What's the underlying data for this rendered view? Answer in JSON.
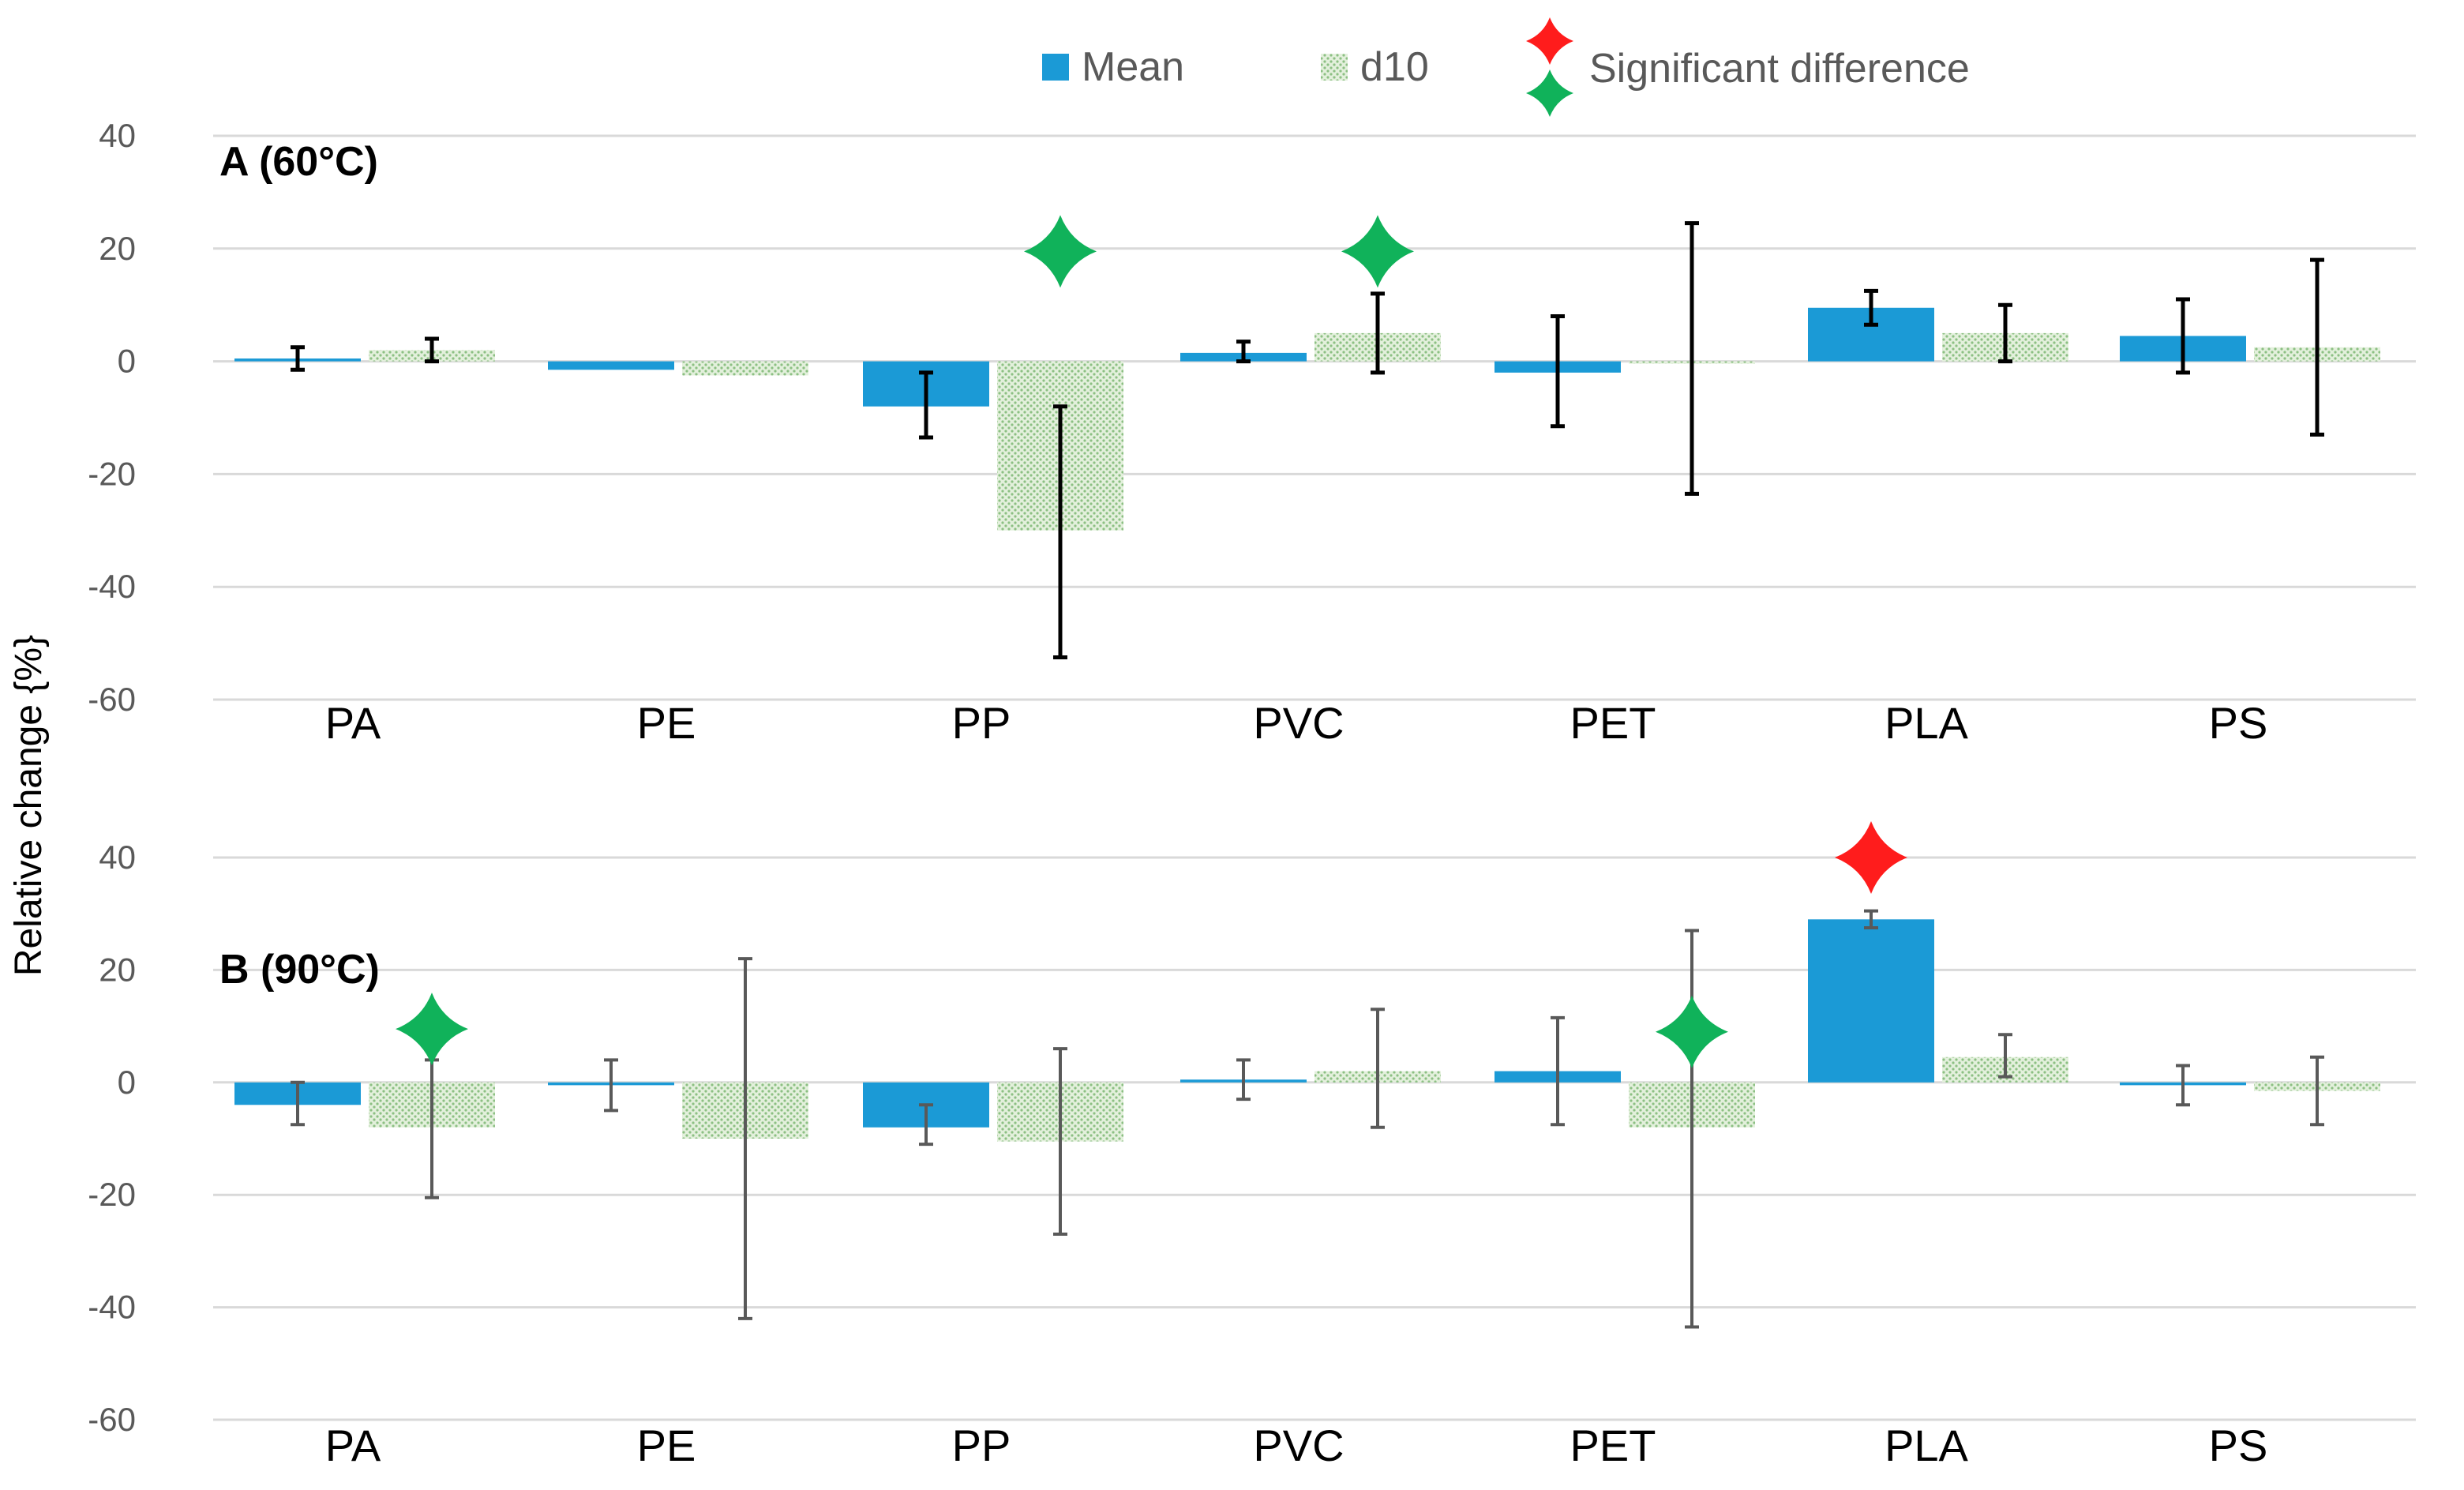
{
  "chart_data": {
    "type": "bar",
    "ylabel": "Relative change {%}",
    "legend": {
      "placement": "top-center",
      "items": [
        {
          "name": "Mean",
          "kind": "bar-solid",
          "color": "#1b9ad6"
        },
        {
          "name": "d10",
          "kind": "bar-hatched",
          "color": "#9bc98f"
        },
        {
          "name": "Significant difference",
          "kind": "star-pair",
          "colors": [
            "#ff1c1c",
            "#10b25a"
          ]
        }
      ]
    },
    "colors": {
      "mean": "#1b9ad6",
      "d10_fill": "#e3f0dc",
      "d10_dot": "#8cc083",
      "error_a": "#000000",
      "error_b": "#595959",
      "star_red": "#ff1c1c",
      "star_green": "#10b25a"
    },
    "panels": [
      {
        "title": "A (60°C)",
        "categories": [
          "PA",
          "PE",
          "PP",
          "PVC",
          "PET",
          "PLA",
          "PS"
        ],
        "ylim": [
          -60,
          40
        ],
        "yticks": [
          "40",
          "20",
          "0",
          "-20",
          "-40",
          "-60"
        ],
        "ytick_values": [
          40,
          20,
          0,
          -20,
          -40,
          -60
        ],
        "series": [
          {
            "name": "Mean",
            "values": [
              0.5,
              -1.5,
              -8,
              1.5,
              -2,
              9.5,
              4.5
            ],
            "err_low": [
              -1.5,
              null,
              -13.5,
              0,
              -11.5,
              6.5,
              -2
            ],
            "err_high": [
              2.5,
              null,
              -2,
              3.5,
              8,
              12.5,
              11
            ]
          },
          {
            "name": "d10",
            "values": [
              2,
              -2.5,
              -30,
              5,
              0,
              5,
              2.5
            ],
            "err_low": [
              0,
              null,
              -52.5,
              -2,
              -23.5,
              0,
              -13
            ],
            "err_high": [
              4,
              null,
              -8,
              12,
              24.5,
              10,
              18
            ]
          }
        ],
        "significant": [
          {
            "category": "PP",
            "series": "d10",
            "color": "green",
            "y": 19.5
          },
          {
            "category": "PVC",
            "series": "d10",
            "color": "green",
            "y": 19.5
          }
        ]
      },
      {
        "title": "B (90°C)",
        "categories": [
          "PA",
          "PE",
          "PP",
          "PVC",
          "PET",
          "PLA",
          "PS"
        ],
        "ylim": [
          -60,
          40
        ],
        "yticks": [
          "40",
          "20",
          "0",
          "-20",
          "-40",
          "-60"
        ],
        "ytick_values": [
          40,
          20,
          0,
          -20,
          -40,
          -60
        ],
        "series": [
          {
            "name": "Mean",
            "values": [
              -4,
              -0.5,
              -8,
              0.5,
              2,
              29,
              -0.5
            ],
            "err_low": [
              -7.5,
              -5,
              -11,
              -3,
              -7.5,
              27.5,
              -4
            ],
            "err_high": [
              0,
              4,
              -4,
              4,
              11.5,
              30.5,
              3
            ]
          },
          {
            "name": "d10",
            "values": [
              -8,
              -10,
              -10.5,
              2,
              -8,
              4.5,
              -1.5
            ],
            "err_low": [
              -20.5,
              -42,
              -27,
              -8,
              -43.5,
              1,
              -7.5
            ],
            "err_high": [
              4,
              22,
              6,
              13,
              27,
              8.5,
              4.5
            ]
          }
        ],
        "significant": [
          {
            "category": "PA",
            "series": "d10",
            "color": "green",
            "y": 9.5
          },
          {
            "category": "PET",
            "series": "d10",
            "color": "green",
            "y": 9
          },
          {
            "category": "PLA",
            "series": "Mean",
            "color": "red",
            "y": 40
          }
        ]
      }
    ]
  }
}
